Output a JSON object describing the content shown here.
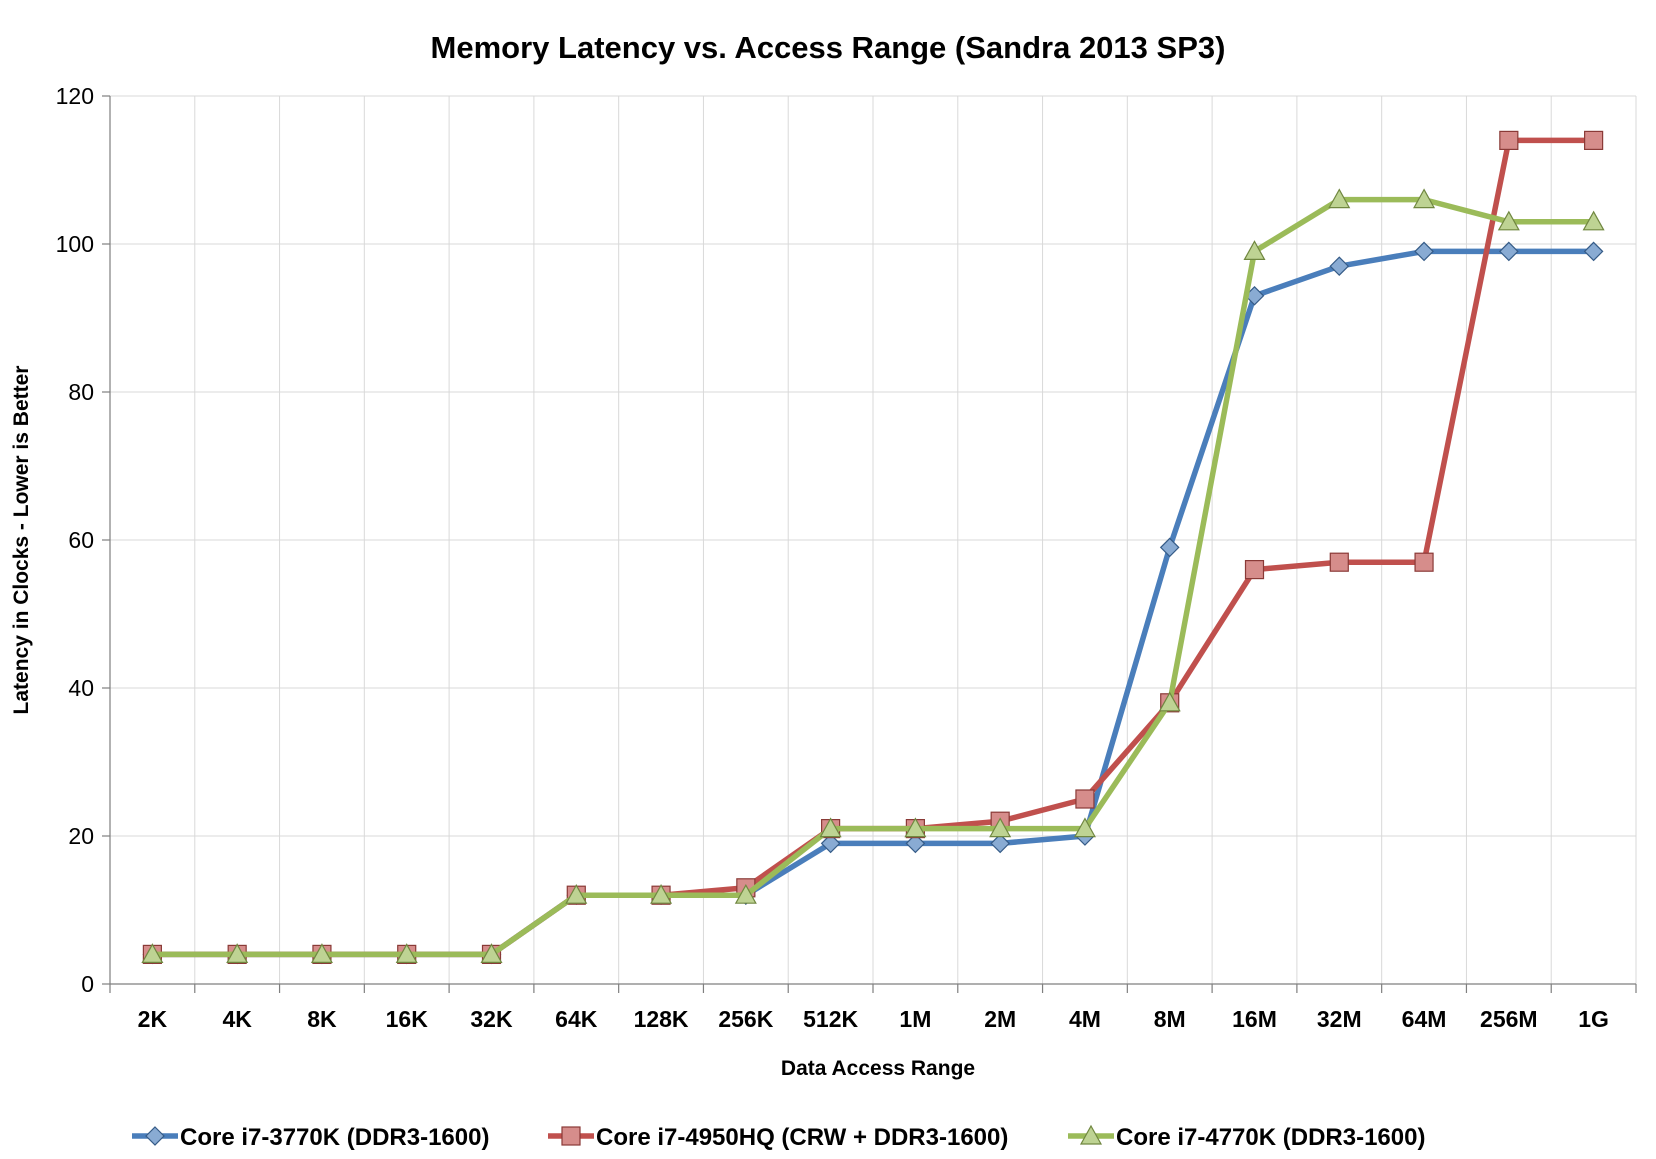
{
  "chart_data": {
    "type": "line",
    "title": "Memory Latency vs. Access Range (Sandra 2013 SP3)",
    "xlabel": "Data Access Range",
    "ylabel": "Latency in Clocks - Lower is Better",
    "ylim": [
      0,
      120
    ],
    "yticks": [
      0,
      20,
      40,
      60,
      80,
      100,
      120
    ],
    "grid": true,
    "legend": "bottom",
    "categories": [
      "2K",
      "4K",
      "8K",
      "16K",
      "32K",
      "64K",
      "128K",
      "256K",
      "512K",
      "1M",
      "2M",
      "4M",
      "8M",
      "16M",
      "32M",
      "64M",
      "256M",
      "1G"
    ],
    "series": [
      {
        "name": "Core i7-3770K (DDR3-1600)",
        "color": "#4a7ebb",
        "marker": "diamond",
        "values": [
          4,
          4,
          4,
          4,
          4,
          12,
          12,
          12,
          19,
          19,
          19,
          20,
          59,
          93,
          97,
          99,
          99,
          99
        ]
      },
      {
        "name": "Core i7-4950HQ (CRW + DDR3-1600)",
        "color": "#c0504d",
        "marker": "square",
        "values": [
          4,
          4,
          4,
          4,
          4,
          12,
          12,
          13,
          21,
          21,
          22,
          25,
          38,
          56,
          57,
          57,
          114,
          114
        ]
      },
      {
        "name": "Core i7-4770K (DDR3-1600)",
        "color": "#9bbb59",
        "marker": "triangle",
        "values": [
          4,
          4,
          4,
          4,
          4,
          12,
          12,
          12,
          21,
          21,
          21,
          21,
          38,
          99,
          106,
          106,
          103,
          103
        ]
      }
    ]
  }
}
